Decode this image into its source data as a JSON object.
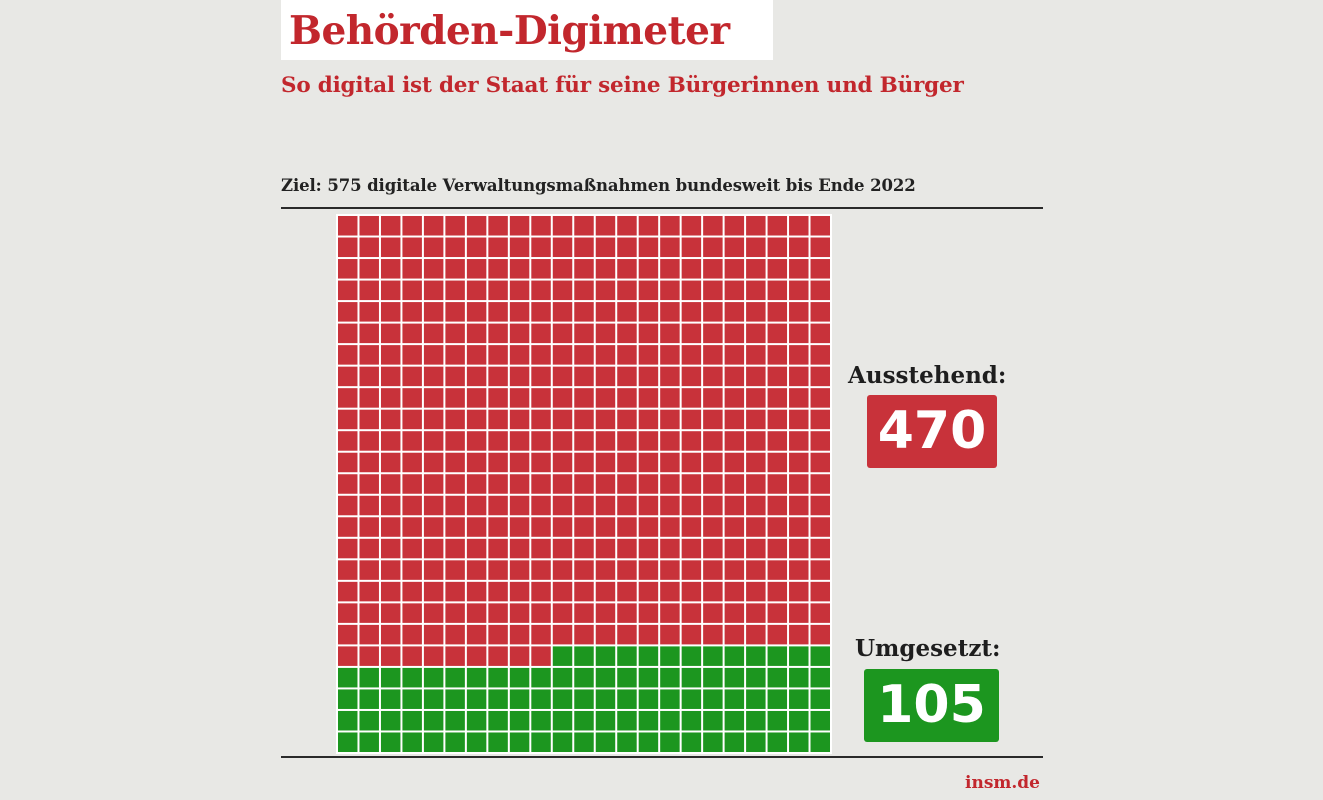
{
  "header": {
    "title": "Behörden-Digimeter",
    "subtitle": "So digital ist der Staat für seine Bürgerinnen und Bürger"
  },
  "goal_text": "Ziel: 575 digitale Verwaltungsmaßnahmen bundesweit bis Ende 2022",
  "legend": {
    "pending_label": "Ausstehend:",
    "pending_value": "470",
    "done_label": "Umgesetzt:",
    "done_value": "105"
  },
  "source": "insm.de",
  "colors": {
    "accent": "#c2272d",
    "pending": "#c8323a",
    "done": "#1c961f",
    "background": "#e8e8e5"
  },
  "chart_data": {
    "type": "waffle",
    "total": 575,
    "columns": 23,
    "rows": 25,
    "categories": [
      "Ausstehend",
      "Umgesetzt"
    ],
    "values": [
      470,
      105
    ],
    "fill_order": "bottom-up, right-to-left",
    "title": "Ziel: 575 digitale Verwaltungsmaßnahmen bundesweit bis Ende 2022"
  }
}
